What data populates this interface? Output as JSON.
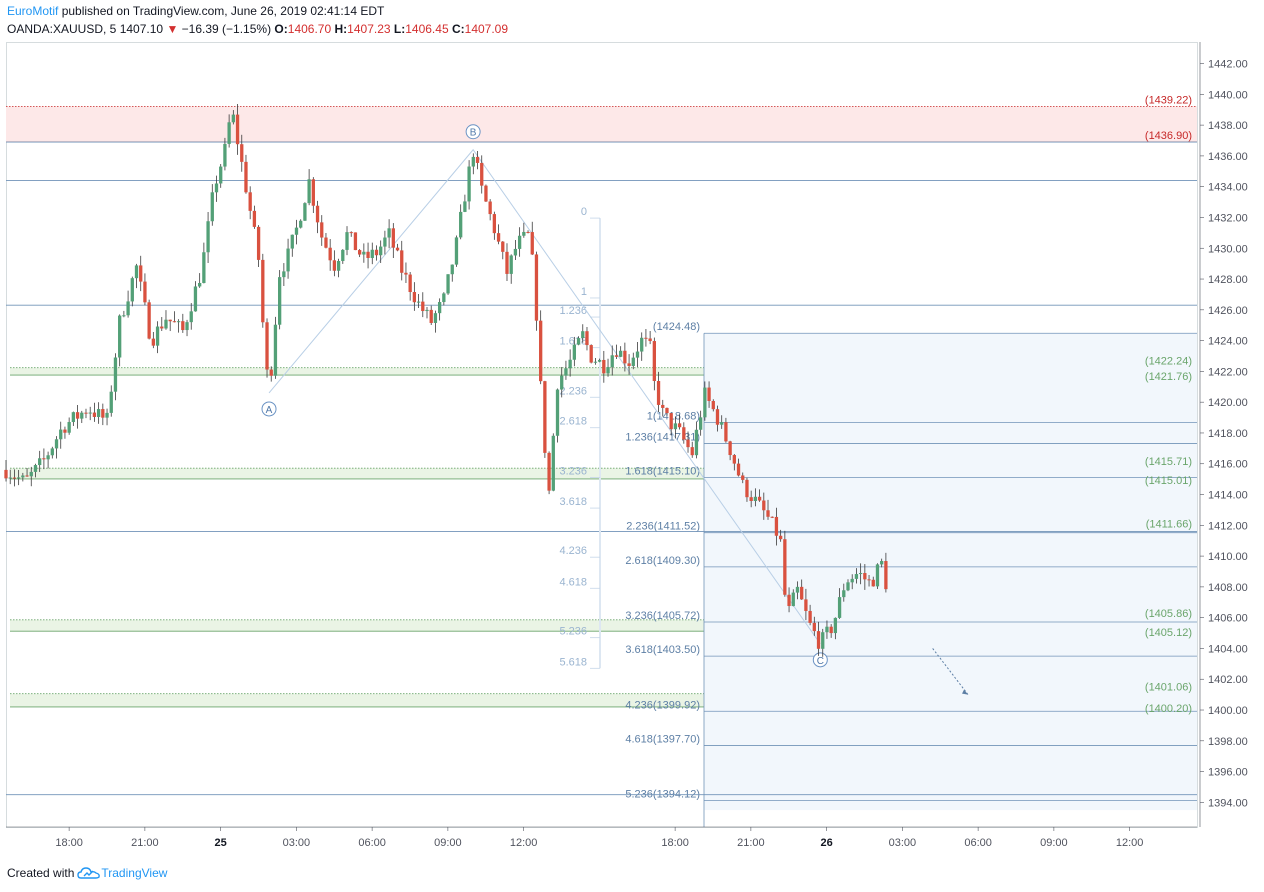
{
  "header": {
    "author": "EuroMotif",
    "published_text": "published on TradingView.com, June 26, 2019 02:41:14 EDT",
    "symbol": "OANDA:XAUUSD, 5",
    "last": "1407.10",
    "change": "−16.39 (−1.15%)",
    "o_label": "O:",
    "o": "1406.70",
    "h_label": "H:",
    "h": "1407.23",
    "l_label": "L:",
    "l": "1406.45",
    "c_label": "C:",
    "c": "1407.09"
  },
  "footer": {
    "created_with": "Created with",
    "brand": "TradingView"
  },
  "colors": {
    "up": "#53a077",
    "down": "#d9513f",
    "level": "#7193b8",
    "zone_red_fill": "#fde8e8",
    "zone_red_line": "#c62828",
    "zone_green_fill": "#eaf4e5",
    "zone_green_line": "#6aa56b",
    "fib_text": "#9ab4d0",
    "ext_text": "#5d7fa5",
    "wave": "#b9cfe6",
    "axis_text": "#50535e"
  },
  "chart_data": {
    "type": "candlestick",
    "symbol": "OANDA:XAUUSD",
    "interval": "5",
    "ylim": [
      1392.4,
      1443.4
    ],
    "x_axis": {
      "ticks": [
        "18:00",
        "21:00",
        "25",
        "03:00",
        "06:00",
        "09:00",
        "12:00",
        "18:00",
        "21:00",
        "26",
        "03:00",
        "06:00",
        "09:00",
        "12:00"
      ],
      "bold_ticks": [
        "25",
        "26"
      ]
    },
    "y_axis": {
      "ticks": [
        "1442.00",
        "1440.00",
        "1438.00",
        "1436.00",
        "1434.00",
        "1432.00",
        "1430.00",
        "1428.00",
        "1426.00",
        "1424.00",
        "1422.00",
        "1420.00",
        "1418.00",
        "1416.00",
        "1414.00",
        "1412.00",
        "1410.00",
        "1408.00",
        "1406.00",
        "1404.00",
        "1402.00",
        "1400.00",
        "1398.00",
        "1396.00",
        "1394.00"
      ]
    },
    "price_path": [
      [
        "15:30",
        1415.6
      ],
      [
        "16:15",
        1414.8
      ],
      [
        "17:00",
        1416.2
      ],
      [
        "17:45",
        1418.4
      ],
      [
        "18:45",
        1419.6
      ],
      [
        "19:30",
        1418.8
      ],
      [
        "20:00",
        1425.2
      ],
      [
        "20:40",
        1428.8
      ],
      [
        "21:15",
        1424.0
      ],
      [
        "21:50",
        1425.5
      ],
      [
        "22:30",
        1424.6
      ],
      [
        "23:15",
        1428.6
      ],
      [
        "23:45",
        1434.0
      ],
      [
        "00:15",
        1436.8
      ],
      [
        "00:25",
        1439.2
      ],
      [
        "00:40",
        1437.0
      ],
      [
        "01:00",
        1434.0
      ],
      [
        "01:30",
        1429.4
      ],
      [
        "01:45",
        1423.2
      ],
      [
        "01:55",
        1420.6
      ],
      [
        "02:20",
        1428.4
      ],
      [
        "02:40",
        1429.5
      ],
      [
        "03:00",
        1431.2
      ],
      [
        "03:30",
        1434.4
      ],
      [
        "04:00",
        1430.8
      ],
      [
        "04:30",
        1428.9
      ],
      [
        "05:00",
        1430.9
      ],
      [
        "05:40",
        1429.3
      ],
      [
        "06:10",
        1429.7
      ],
      [
        "06:40",
        1430.9
      ],
      [
        "07:10",
        1428.6
      ],
      [
        "07:50",
        1426.4
      ],
      [
        "08:20",
        1425.2
      ],
      [
        "08:50",
        1426.6
      ],
      [
        "09:20",
        1430.2
      ],
      [
        "09:40",
        1433.4
      ],
      [
        "10:00",
        1436.4
      ],
      [
        "10:20",
        1433.8
      ],
      [
        "10:50",
        1431.3
      ],
      [
        "11:20",
        1428.4
      ],
      [
        "11:45",
        1430.3
      ],
      [
        "12:15",
        1430.9
      ],
      [
        "12:30",
        1426.0
      ],
      [
        "12:45",
        1418.8
      ],
      [
        "13:00",
        1414.0
      ],
      [
        "13:20",
        1421.3
      ],
      [
        "13:50",
        1422.6
      ],
      [
        "14:20",
        1424.4
      ],
      [
        "14:40",
        1423.0
      ],
      [
        "15:10",
        1422.4
      ],
      [
        "15:40",
        1423.5
      ],
      [
        "16:10",
        1422.6
      ],
      [
        "16:40",
        1424.0
      ],
      [
        "17:00",
        1423.6
      ],
      [
        "17:10",
        1421.2
      ],
      [
        "17:30",
        1419.3
      ],
      [
        "17:50",
        1418.6
      ],
      [
        "18:10",
        1418.0
      ],
      [
        "18:40",
        1416.6
      ],
      [
        "19:10",
        1420.5
      ],
      [
        "19:40",
        1419.0
      ],
      [
        "20:10",
        1417.0
      ],
      [
        "20:40",
        1414.6
      ],
      [
        "21:10",
        1413.6
      ],
      [
        "21:40",
        1412.5
      ],
      [
        "22:10",
        1411.1
      ],
      [
        "22:25",
        1406.0
      ],
      [
        "22:50",
        1407.8
      ],
      [
        "23:20",
        1405.5
      ],
      [
        "23:45",
        1404.3
      ],
      [
        "00:15",
        1405.5
      ],
      [
        "00:45",
        1408.4
      ],
      [
        "01:15",
        1408.9
      ],
      [
        "01:45",
        1408.2
      ],
      [
        "02:10",
        1409.6
      ],
      [
        "02:30",
        1407.1
      ]
    ],
    "levels": [
      1436.9,
      1434.4,
      1426.3,
      1411.6,
      1394.5
    ],
    "zones": [
      {
        "type": "supply",
        "top": 1439.22,
        "bottom": 1436.9,
        "labels": [
          "(1439.22)",
          "(1436.90)"
        ]
      },
      {
        "type": "demand",
        "top": 1422.24,
        "bottom": 1421.76,
        "labels": [
          "(1422.24)",
          "(1421.76)"
        ]
      },
      {
        "type": "demand",
        "top": 1415.71,
        "bottom": 1415.01,
        "labels": [
          "(1415.71)",
          "(1415.01)"
        ]
      },
      {
        "type": "demand",
        "top": 1405.86,
        "bottom": 1405.12,
        "labels": [
          "(1405.86)",
          "(1405.12)"
        ]
      },
      {
        "type": "demand",
        "top": 1401.06,
        "bottom": 1400.2,
        "labels": [
          "(1401.06)",
          "(1400.20)"
        ]
      }
    ],
    "single_level_labels": [
      {
        "price": 1411.66,
        "label": "(1411.66)"
      }
    ],
    "waves": [
      {
        "label": "A",
        "time": "01:55",
        "price": 1420.6
      },
      {
        "label": "B",
        "time": "10:00",
        "price": 1436.4
      },
      {
        "label": "C",
        "time": "23:45",
        "price": 1404.3
      }
    ],
    "fib_ratios_left": [
      {
        "ratio": "0",
        "price": 1431.96
      },
      {
        "ratio": "1",
        "price": 1426.77
      },
      {
        "ratio": "1.236",
        "price": 1425.53
      },
      {
        "ratio": "1.618",
        "price": 1423.54
      },
      {
        "ratio": "2.236",
        "price": 1420.32
      },
      {
        "ratio": "2.618",
        "price": 1418.34
      },
      {
        "ratio": "3.236",
        "price": 1415.11
      },
      {
        "ratio": "3.618",
        "price": 1413.12
      },
      {
        "ratio": "4.236",
        "price": 1409.93
      },
      {
        "ratio": "4.618",
        "price": 1407.91
      },
      {
        "ratio": "5.236",
        "price": 1404.7
      },
      {
        "ratio": "5.618",
        "price": 1402.71
      }
    ],
    "fib_extensions": [
      {
        "label": "(1424.48)",
        "price": 1424.48
      },
      {
        "label": "1(1418.68)",
        "price": 1418.68
      },
      {
        "label": "1.236(1417.31)",
        "price": 1417.31
      },
      {
        "label": "1.618(1415.10)",
        "price": 1415.1
      },
      {
        "label": "2.236(1411.52)",
        "price": 1411.52
      },
      {
        "label": "2.618(1409.30)",
        "price": 1409.3
      },
      {
        "label": "3.236(1405.72)",
        "price": 1405.72
      },
      {
        "label": "3.618(1403.50)",
        "price": 1403.5
      },
      {
        "label": "4.236(1399.92)",
        "price": 1399.92
      },
      {
        "label": "4.618(1397.70)",
        "price": 1397.7
      },
      {
        "label": "5.236(1394.12)",
        "price": 1394.12
      }
    ]
  }
}
